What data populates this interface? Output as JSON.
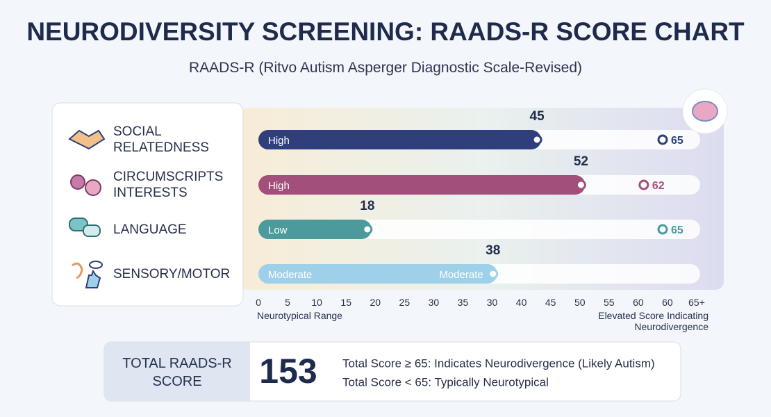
{
  "title": "NEURODIVERSITY SCREENING: RAADS-R SCORE CHART",
  "subtitle": "RAADS-R (Ritvo Autism Asperger Diagnostic Scale-Revised)",
  "chart_data": {
    "type": "bar",
    "orientation": "horizontal",
    "categories": [
      "SOCIAL RELATEDNESS",
      "CIRCUMSCRIPTS INTERESTS",
      "LANGUAGE",
      "SENSORY/MOTOR"
    ],
    "values": [
      45,
      52,
      18,
      38
    ],
    "colors": [
      "#2e3f7c",
      "#a24f7b",
      "#4c9a9c",
      "#9fd0ea"
    ],
    "level_labels": [
      "High",
      "High",
      "Low",
      "Moderate"
    ],
    "end_labels": [
      null,
      null,
      null,
      "Moderate"
    ],
    "max_values": [
      65,
      62,
      65,
      null
    ],
    "xlim": [
      0,
      65
    ],
    "scale_labels": [
      "0",
      "5",
      "10",
      "15",
      "20",
      "25",
      "30",
      "35",
      "30",
      "40",
      "45",
      "50",
      "55",
      "60",
      "60",
      "65+"
    ],
    "x_label_left": "Neurotypical Range",
    "x_label_right": "Elevated Score Indicating Neurodivergence"
  },
  "total": {
    "label": "TOTAL RAADS-R SCORE",
    "value": 153,
    "notes": [
      "Total Score ≥ 65: Indicates Neurodivergence (Likely Autism)",
      "Total Score < 65: Typically Neurotypical"
    ]
  }
}
